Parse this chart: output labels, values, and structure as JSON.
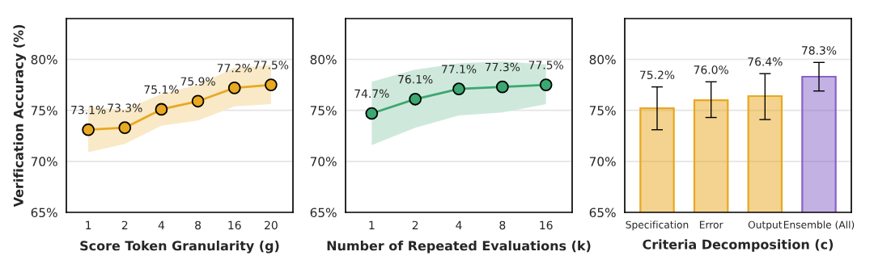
{
  "chart_data": [
    {
      "type": "line",
      "xlabel": "Score Token Granularity (g)",
      "ylabel": "Verification Accuracy (%)",
      "categories": [
        "1",
        "2",
        "4",
        "8",
        "16",
        "20"
      ],
      "series": [
        {
          "color": "#e8a820",
          "values": [
            73.1,
            73.3,
            75.1,
            75.9,
            77.2,
            77.5
          ],
          "lower": [
            70.9,
            71.7,
            73.5,
            74.0,
            75.4,
            75.6
          ],
          "upper": [
            75.3,
            75.1,
            76.6,
            77.5,
            79.2,
            79.4
          ],
          "value_labels": [
            "73.1%",
            "73.3%",
            "75.1%",
            "75.9%",
            "77.2%",
            "77.5%"
          ]
        }
      ],
      "ylim": [
        65,
        84
      ],
      "yticks": [
        {
          "value": 65,
          "label": "65%"
        },
        {
          "value": 70,
          "label": "70%"
        },
        {
          "value": 75,
          "label": "75%"
        },
        {
          "value": 80,
          "label": "80%"
        }
      ],
      "grid": "y",
      "marker": "circle",
      "line_style": "solid"
    },
    {
      "type": "line",
      "xlabel": "Number of Repeated Evaluations (k)",
      "categories": [
        "1",
        "2",
        "4",
        "8",
        "16"
      ],
      "series": [
        {
          "color": "#3aa870",
          "values": [
            74.7,
            76.1,
            77.1,
            77.3,
            77.5
          ],
          "lower": [
            71.6,
            73.3,
            74.5,
            74.8,
            75.6
          ],
          "upper": [
            77.8,
            79.0,
            79.6,
            79.8,
            79.5
          ],
          "value_labels": [
            "74.7%",
            "76.1%",
            "77.1%",
            "77.3%",
            "77.5%"
          ]
        }
      ],
      "ylim": [
        65,
        84
      ],
      "yticks": [
        {
          "value": 65,
          "label": "65%"
        },
        {
          "value": 70,
          "label": "70%"
        },
        {
          "value": 75,
          "label": "75%"
        },
        {
          "value": 80,
          "label": "80%"
        }
      ],
      "grid": "y",
      "marker": "circle",
      "line_style": "solid"
    },
    {
      "type": "bar",
      "xlabel": "Criteria Decomposition (c)",
      "categories": [
        "Specification",
        "Error",
        "Output",
        "Ensemble (All)"
      ],
      "values": [
        75.2,
        76.0,
        76.4,
        78.3
      ],
      "colors": [
        "#e8a820",
        "#e8a820",
        "#e8a820",
        "#8a63c8"
      ],
      "errors": [
        [
          73.1,
          77.3
        ],
        [
          74.3,
          77.8
        ],
        [
          74.1,
          78.6
        ],
        [
          76.9,
          79.7
        ]
      ],
      "value_labels": [
        "75.2%",
        "76.0%",
        "76.4%",
        "78.3%"
      ],
      "ylim": [
        65,
        84
      ],
      "yticks": [
        {
          "value": 65,
          "label": "65%"
        },
        {
          "value": 70,
          "label": "70%"
        },
        {
          "value": 75,
          "label": "75%"
        },
        {
          "value": 80,
          "label": "80%"
        }
      ],
      "grid": "y"
    }
  ]
}
